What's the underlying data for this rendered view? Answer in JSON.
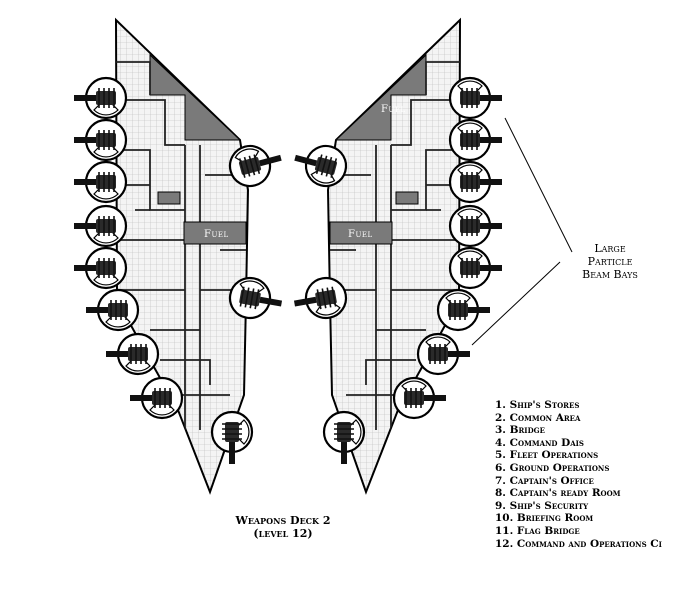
{
  "map": {
    "fuel_label": "Fuel",
    "callout": [
      "Large",
      "Particle",
      "Beam Bays"
    ],
    "deck_title": [
      "Weapons Deck 2",
      "(level 12)"
    ],
    "legend": [
      "1.  Ship's Stores",
      "2.  Common Area",
      "3.  Bridge",
      "4.  Command Dais",
      "5.  Fleet Operations",
      "6.  Ground Operations",
      "7.  Captain's Office",
      "8.  Captain's ready Room",
      "9.  Ship's Security",
      "10.  Briefing Room",
      "11.  Flag Bridge",
      "12.  Command and Operations Ci"
    ],
    "colors": {
      "hull_fill": "#f2f2f2",
      "fuel_fill": "#7a7a7a",
      "wall": "#000000",
      "grid": "#b8b8b8",
      "turret_fill": "#ffffff",
      "gun": "#1a1a1a"
    },
    "icons": [
      "particle-beam-turret-icon",
      "fuel-tank-icon"
    ]
  }
}
